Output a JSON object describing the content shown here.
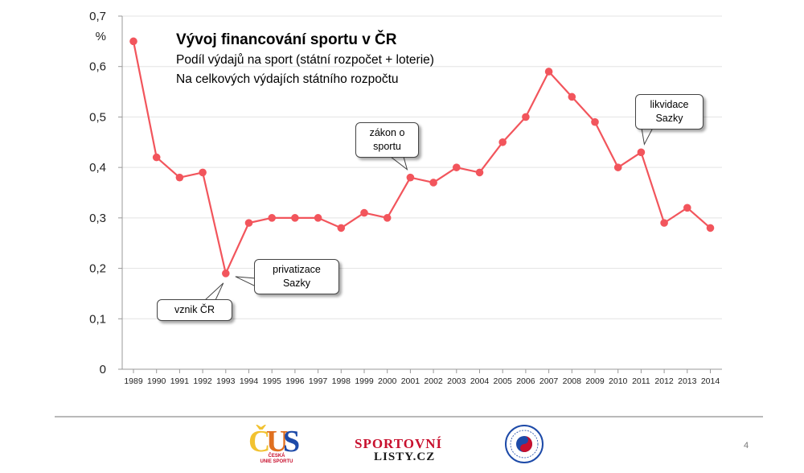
{
  "chart_data": {
    "type": "line",
    "title": "Vývoj financování sportu v ČR",
    "subtitle_lines": [
      "Podíl výdajů na sport (státní rozpočet + loterie)",
      "Na celkových výdajích státního rozpočtu"
    ],
    "ylabel": "%",
    "ylim": [
      0,
      0.7
    ],
    "yticks": [
      "0",
      "0,1",
      "0,2",
      "0,3",
      "0,4",
      "0,5",
      "0,6",
      "0,7"
    ],
    "categories": [
      "1989",
      "1990",
      "1991",
      "1992",
      "1993",
      "1994",
      "1995",
      "1996",
      "1997",
      "1998",
      "1999",
      "2000",
      "2001",
      "2002",
      "2003",
      "2004",
      "2005",
      "2006",
      "2007",
      "2008",
      "2009",
      "2010",
      "2011",
      "2012",
      "2013",
      "2014"
    ],
    "values": [
      0.65,
      0.42,
      0.38,
      0.39,
      0.19,
      0.29,
      0.3,
      0.3,
      0.3,
      0.28,
      0.31,
      0.3,
      0.38,
      0.37,
      0.4,
      0.39,
      0.45,
      0.5,
      0.59,
      0.54,
      0.49,
      0.4,
      0.43,
      0.29,
      0.32,
      0.28
    ],
    "series_color": "#f2555c",
    "grid": true,
    "annotations": [
      {
        "text": "vznik ČR",
        "year": "1993"
      },
      {
        "text": "privatizace\nSazky",
        "year": "1993"
      },
      {
        "text": "zákon o\nsportu",
        "year": "2001"
      },
      {
        "text": "likvidace\nSazky",
        "year": "2011"
      }
    ]
  },
  "footer": {
    "logo1_caption": "ČESKÁ\nUNIE SPORTU",
    "logo2_line1": "SPORTOVNÍ",
    "logo2_line2": "LISTY.CZ",
    "page_number": "4"
  }
}
